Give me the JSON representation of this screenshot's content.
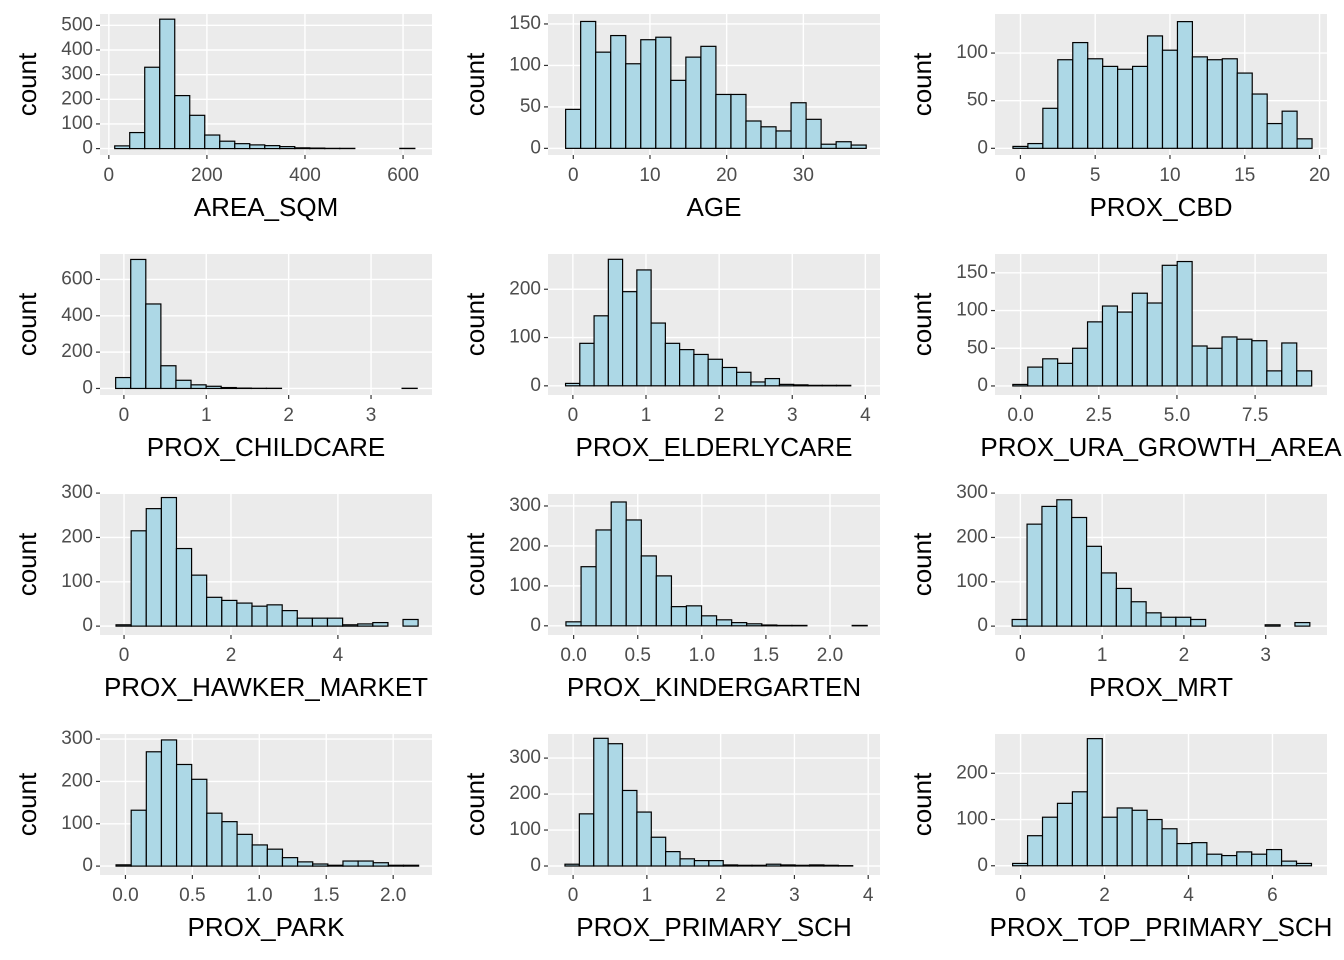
{
  "chart_data": [
    {
      "type": "histogram",
      "xlabel": "AREA_SQM",
      "ylabel": "count",
      "color": "#add8e6",
      "bins": [
        12,
        42.6,
        73.2,
        103.8,
        134.4,
        165,
        195.6,
        226.2,
        256.8,
        287.4,
        318,
        348.6,
        379.2,
        409.8,
        440.4,
        471,
        501.6,
        532.2,
        562.8,
        593.4,
        624
      ],
      "values": [
        11,
        65,
        330,
        525,
        215,
        135,
        55,
        30,
        20,
        15,
        12,
        8,
        3,
        2,
        1,
        1,
        0,
        0,
        0,
        1
      ],
      "xlim": [
        -18,
        659
      ],
      "ylim": [
        -26,
        546
      ],
      "xticks": [
        0,
        200,
        400,
        600
      ],
      "yticks": [
        0,
        100,
        200,
        300,
        400,
        500
      ],
      "grid": true
    },
    {
      "type": "histogram",
      "xlabel": "AGE",
      "ylabel": "count",
      "color": "#add8e6",
      "bins": [
        -1,
        0.96,
        2.92,
        4.88,
        6.84,
        8.8,
        10.76,
        12.72,
        14.68,
        16.64,
        18.6,
        20.56,
        22.52,
        24.48,
        26.44,
        28.4,
        30.36,
        32.32,
        34.28,
        36.24,
        38.2
      ],
      "values": [
        47,
        153,
        116,
        136,
        102,
        131,
        134,
        82,
        110,
        123,
        65,
        65,
        33,
        26,
        21,
        55,
        35,
        5,
        8,
        4
      ],
      "xlim": [
        -3.3,
        40
      ],
      "ylim": [
        -8,
        162
      ],
      "xticks": [
        0,
        10,
        20,
        30
      ],
      "yticks": [
        0,
        50,
        100,
        150
      ],
      "grid": true
    },
    {
      "type": "histogram",
      "xlabel": "PROX_CBD",
      "ylabel": "count",
      "color": "#add8e6",
      "bins": [
        -0.5,
        0.5,
        1.5,
        2.5,
        3.5,
        4.5,
        5.5,
        6.5,
        7.5,
        8.5,
        9.5,
        10.5,
        11.5,
        12.5,
        13.5,
        14.5,
        15.5,
        16.5,
        17.5,
        18.5,
        19.5
      ],
      "values": [
        2,
        5,
        42,
        93,
        111,
        94,
        86,
        83,
        86,
        118,
        103,
        133,
        96,
        93,
        94,
        79,
        57,
        26,
        39,
        10
      ],
      "xlim": [
        -1.7,
        20.5
      ],
      "ylim": [
        -7,
        141
      ],
      "xticks": [
        0,
        5,
        10,
        15,
        20
      ],
      "yticks": [
        0,
        50,
        100
      ],
      "grid": true
    },
    {
      "type": "histogram",
      "xlabel": "PROX_CHILDCARE",
      "ylabel": "count",
      "color": "#add8e6",
      "bins": [
        -0.1,
        0.083,
        0.266,
        0.449,
        0.632,
        0.815,
        0.998,
        1.181,
        1.364,
        1.547,
        1.73,
        1.913,
        2.096,
        2.279,
        2.462,
        2.645,
        2.828,
        3.011,
        3.194,
        3.377,
        3.56
      ],
      "values": [
        60,
        710,
        465,
        125,
        45,
        20,
        12,
        5,
        2,
        1,
        1,
        0,
        0,
        0,
        0,
        0,
        0,
        0,
        0,
        1
      ],
      "xlim": [
        -0.29,
        3.74
      ],
      "ylim": [
        -36,
        740
      ],
      "xticks": [
        0,
        1,
        2,
        3
      ],
      "yticks": [
        0,
        200,
        400,
        600
      ],
      "grid": true
    },
    {
      "type": "histogram",
      "xlabel": "PROX_ELDERLYCARE",
      "ylabel": "count",
      "color": "#add8e6",
      "bins": [
        -0.1,
        0.095,
        0.29,
        0.485,
        0.68,
        0.875,
        1.07,
        1.265,
        1.46,
        1.655,
        1.85,
        2.045,
        2.24,
        2.435,
        2.63,
        2.825,
        3.02,
        3.215,
        3.41,
        3.605,
        3.8
      ],
      "values": [
        5,
        88,
        145,
        262,
        195,
        240,
        130,
        88,
        75,
        65,
        55,
        38,
        28,
        8,
        15,
        3,
        2,
        1,
        1,
        1
      ],
      "xlim": [
        -0.34,
        4.2
      ],
      "ylim": [
        -19,
        273
      ],
      "xticks": [
        0,
        1,
        2,
        3,
        4
      ],
      "yticks": [
        0,
        100,
        200
      ],
      "grid": true
    },
    {
      "type": "histogram",
      "xlabel": "PROX_URA_GROWTH_AREA",
      "ylabel": "count",
      "color": "#add8e6",
      "bins": [
        -0.25,
        0.228,
        0.706,
        1.184,
        1.662,
        2.14,
        2.618,
        3.096,
        3.574,
        4.052,
        4.53,
        5.008,
        5.486,
        5.964,
        6.442,
        6.92,
        7.398,
        7.876,
        8.354,
        8.832,
        9.31
      ],
      "values": [
        2,
        25,
        36,
        30,
        50,
        85,
        106,
        98,
        123,
        110,
        160,
        165,
        53,
        50,
        65,
        62,
        60,
        20,
        57,
        20
      ],
      "xlim": [
        -0.82,
        9.8
      ],
      "ylim": [
        -12,
        175
      ],
      "xticks": [
        {
          "value": 0,
          "label": "0.0"
        },
        2.5,
        {
          "value": 5,
          "label": "5.0"
        },
        7.5
      ],
      "yticks": [
        0,
        50,
        100,
        150
      ],
      "grid": true
    },
    {
      "type": "histogram",
      "xlabel": "PROX_HAWKER_MARKET",
      "ylabel": "count",
      "color": "#add8e6",
      "bins": [
        -0.15,
        0.133,
        0.415,
        0.698,
        0.98,
        1.263,
        1.545,
        1.828,
        2.11,
        2.393,
        2.675,
        2.958,
        3.24,
        3.523,
        3.805,
        4.088,
        4.37,
        4.653,
        4.935,
        5.218,
        5.5
      ],
      "values": [
        3,
        215,
        265,
        290,
        175,
        115,
        65,
        58,
        52,
        45,
        48,
        35,
        18,
        18,
        18,
        3,
        5,
        8,
        0,
        15
      ],
      "xlim": [
        -0.45,
        5.76
      ],
      "ylim": [
        -20,
        298
      ],
      "xticks": [
        0,
        2,
        4
      ],
      "yticks": [
        0,
        100,
        200,
        300
      ],
      "grid": true
    },
    {
      "type": "histogram",
      "xlabel": "PROX_KINDERGARTEN",
      "ylabel": "count",
      "color": "#add8e6",
      "bins": [
        -0.06,
        0.058,
        0.175,
        0.293,
        0.41,
        0.528,
        0.645,
        0.763,
        0.88,
        0.998,
        1.115,
        1.233,
        1.35,
        1.468,
        1.585,
        1.703,
        1.82,
        1.938,
        2.055,
        2.173,
        2.29
      ],
      "values": [
        10,
        148,
        240,
        310,
        265,
        175,
        125,
        48,
        50,
        25,
        15,
        8,
        5,
        2,
        1,
        1,
        0,
        0,
        0,
        1
      ],
      "xlim": [
        -0.2,
        2.39
      ],
      "ylim": [
        -23,
        330
      ],
      "xticks": [
        {
          "value": 0,
          "label": "0.0"
        },
        0.5,
        {
          "value": 1,
          "label": "1.0"
        },
        1.5,
        {
          "value": 2,
          "label": "2.0"
        }
      ],
      "yticks": [
        0,
        100,
        200,
        300
      ],
      "grid": true
    },
    {
      "type": "histogram",
      "xlabel": "PROX_MRT",
      "ylabel": "count",
      "color": "#add8e6",
      "bins": [
        -0.1,
        0.082,
        0.264,
        0.446,
        0.628,
        0.81,
        0.992,
        1.174,
        1.356,
        1.538,
        1.72,
        1.902,
        2.084,
        2.266,
        2.448,
        2.63,
        2.812,
        2.994,
        3.176,
        3.358,
        3.54
      ],
      "values": [
        15,
        230,
        270,
        285,
        245,
        180,
        120,
        85,
        55,
        30,
        20,
        20,
        15,
        0,
        0,
        0,
        0,
        3,
        0,
        8
      ],
      "xlim": [
        -0.31,
        3.75
      ],
      "ylim": [
        -20,
        298
      ],
      "xticks": [
        0,
        1,
        2,
        3
      ],
      "yticks": [
        0,
        100,
        200,
        300
      ],
      "grid": true
    },
    {
      "type": "histogram",
      "xlabel": "PROX_PARK",
      "ylabel": "count",
      "color": "#add8e6",
      "bins": [
        -0.07,
        0.043,
        0.156,
        0.269,
        0.382,
        0.495,
        0.608,
        0.721,
        0.834,
        0.947,
        1.06,
        1.173,
        1.286,
        1.399,
        1.512,
        1.625,
        1.738,
        1.851,
        1.964,
        2.077,
        2.19
      ],
      "values": [
        3,
        132,
        270,
        298,
        240,
        205,
        125,
        105,
        75,
        50,
        40,
        20,
        10,
        5,
        2,
        12,
        12,
        8,
        2,
        2
      ],
      "xlim": [
        -0.19,
        2.29
      ],
      "ylim": [
        -21,
        312
      ],
      "xticks": [
        {
          "value": 0,
          "label": "0.0"
        },
        0.5,
        {
          "value": 1,
          "label": "1.0"
        },
        1.5,
        {
          "value": 2,
          "label": "2.0"
        }
      ],
      "yticks": [
        0,
        100,
        200,
        300
      ],
      "grid": true
    },
    {
      "type": "histogram",
      "xlabel": "PROX_PRIMARY_SCH",
      "ylabel": "count",
      "color": "#add8e6",
      "bins": [
        -0.11,
        0.085,
        0.28,
        0.475,
        0.67,
        0.865,
        1.06,
        1.255,
        1.45,
        1.645,
        1.84,
        2.035,
        2.23,
        2.425,
        2.62,
        2.815,
        3.01,
        3.205,
        3.4,
        3.595,
        3.79
      ],
      "values": [
        5,
        145,
        355,
        340,
        210,
        150,
        80,
        40,
        20,
        15,
        15,
        3,
        2,
        2,
        5,
        3,
        2,
        3,
        2,
        1
      ],
      "xlim": [
        -0.34,
        4.16
      ],
      "ylim": [
        -25,
        367
      ],
      "xticks": [
        0,
        1,
        2,
        3,
        4
      ],
      "yticks": [
        0,
        100,
        200,
        300
      ],
      "grid": true
    },
    {
      "type": "histogram",
      "xlabel": "PROX_TOP_PRIMARY_SCH",
      "ylabel": "count",
      "color": "#add8e6",
      "bins": [
        -0.19,
        0.166,
        0.522,
        0.878,
        1.234,
        1.59,
        1.946,
        2.302,
        2.658,
        3.014,
        3.37,
        3.726,
        4.082,
        4.438,
        4.794,
        5.15,
        5.506,
        5.862,
        6.218,
        6.574,
        6.93
      ],
      "values": [
        5,
        65,
        105,
        135,
        160,
        275,
        105,
        125,
        120,
        100,
        80,
        48,
        50,
        25,
        22,
        30,
        25,
        35,
        10,
        5
      ],
      "xlim": [
        -0.61,
        7.3
      ],
      "ylim": [
        -20,
        285
      ],
      "xticks": [
        0,
        2,
        4,
        6
      ],
      "yticks": [
        0,
        100,
        200
      ],
      "grid": true
    }
  ]
}
